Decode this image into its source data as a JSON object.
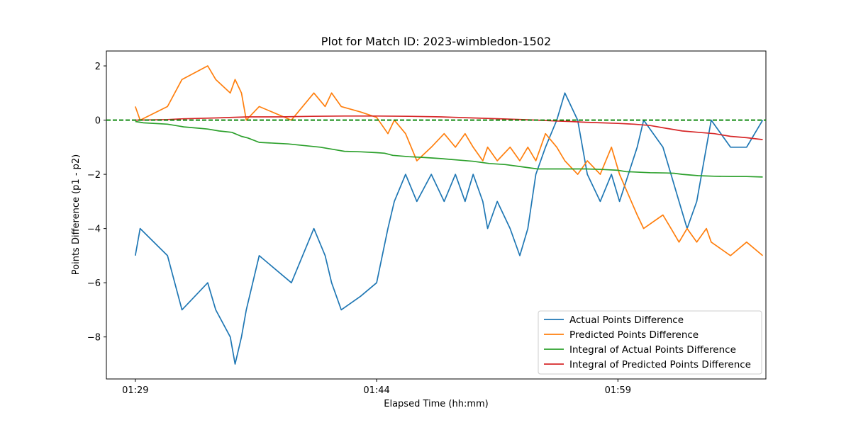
{
  "chart_data": {
    "type": "line",
    "title": "Plot for Match ID: 2023-wimbledon-1502",
    "xlabel": "Elapsed Time (hh:mm)",
    "ylabel": "Points Difference (p1 - p2)",
    "x_unit": "minutes",
    "xlim": [
      87.2,
      128.2
    ],
    "ylim": [
      -9.55,
      2.55
    ],
    "x_ticks": [
      {
        "value": 89,
        "label": "01:29"
      },
      {
        "value": 104,
        "label": "01:44"
      },
      {
        "value": 119,
        "label": "01:59"
      }
    ],
    "y_ticks": [
      {
        "value": 2,
        "label": "2"
      },
      {
        "value": 0,
        "label": "0"
      },
      {
        "value": -2,
        "label": "−2"
      },
      {
        "value": -4,
        "label": "−4"
      },
      {
        "value": -6,
        "label": "−6"
      },
      {
        "value": -8,
        "label": "−8"
      }
    ],
    "reference_line": {
      "y": 0,
      "color": "#008000",
      "style": "dashed"
    },
    "grid": false,
    "legend_position": "lower-right",
    "series": [
      {
        "name": "Actual Points Difference",
        "color": "#1f77b4",
        "x": [
          89.0,
          89.3,
          91.0,
          91.9,
          93.5,
          94.0,
          94.9,
          95.2,
          95.6,
          95.9,
          96.7,
          98.7,
          100.1,
          100.8,
          101.2,
          101.8,
          103.0,
          104.0,
          104.7,
          105.1,
          105.8,
          106.5,
          107.4,
          108.2,
          108.9,
          109.5,
          110.0,
          110.6,
          110.9,
          111.5,
          112.3,
          112.9,
          113.4,
          113.9,
          114.5,
          115.2,
          115.7,
          116.5,
          117.1,
          117.9,
          118.6,
          119.1,
          120.2,
          120.6,
          121.8,
          122.3,
          122.8,
          123.3,
          123.9,
          124.5,
          124.8,
          126.0,
          127.0,
          128.0
        ],
        "y": [
          -5,
          -4,
          -5,
          -7,
          -6,
          -7,
          -8,
          -9,
          -8,
          -7,
          -5,
          -6,
          -4,
          -5,
          -6,
          -7,
          -6.5,
          -6,
          -4,
          -3,
          -2,
          -3,
          -2,
          -3,
          -2,
          -3,
          -2,
          -3,
          -4,
          -3,
          -4,
          -5,
          -4,
          -2,
          -1,
          0,
          1,
          0,
          -2,
          -3,
          -2,
          -3,
          -1,
          0,
          -1,
          -2,
          -3,
          -4,
          -3,
          -1,
          0,
          -1,
          -1,
          0
        ]
      },
      {
        "name": "Predicted Points Difference",
        "color": "#ff7f0e",
        "x": [
          89.0,
          89.3,
          91.0,
          91.9,
          93.5,
          94.0,
          94.9,
          95.2,
          95.6,
          95.9,
          96.7,
          98.7,
          100.1,
          100.8,
          101.2,
          101.8,
          103.0,
          104.0,
          104.7,
          105.1,
          105.8,
          106.5,
          107.4,
          108.2,
          108.9,
          109.5,
          110.0,
          110.6,
          110.9,
          111.5,
          112.3,
          112.9,
          113.4,
          113.9,
          114.5,
          115.2,
          115.7,
          116.5,
          117.1,
          117.9,
          118.6,
          119.1,
          120.2,
          120.6,
          121.8,
          122.3,
          122.8,
          123.3,
          123.9,
          124.5,
          124.8,
          126.0,
          127.0,
          128.0
        ],
        "y": [
          0.5,
          0,
          0.5,
          1.5,
          2,
          1.5,
          1,
          1.5,
          1,
          0,
          0.5,
          0,
          1,
          0.5,
          1,
          0.5,
          0.3,
          0.1,
          -0.5,
          0,
          -0.5,
          -1.5,
          -1,
          -0.5,
          -1,
          -0.5,
          -1,
          -1.5,
          -1,
          -1.5,
          -1,
          -1.5,
          -1,
          -1.5,
          -0.5,
          -1,
          -1.5,
          -2,
          -1.5,
          -2,
          -1,
          -2,
          -3.5,
          -4,
          -3.5,
          -4,
          -4.5,
          -4,
          -4.5,
          -4,
          -4.5,
          -5,
          -4.5,
          -5
        ]
      },
      {
        "name": "Integral of Actual Points Difference",
        "color": "#2ca02c",
        "x": [
          89.0,
          89.5,
          91.0,
          92.0,
          93.0,
          93.5,
          94.2,
          95.0,
          95.6,
          96.0,
          96.7,
          98.5,
          100.5,
          101.5,
          102.0,
          103.0,
          104.0,
          104.5,
          105.0,
          106.0,
          107.0,
          108.0,
          109.0,
          110.0,
          111.0,
          112.0,
          113.0,
          114.0,
          115.0,
          116.0,
          117.0,
          118.0,
          119.0,
          119.5,
          121.0,
          122.0,
          122.5,
          123.0,
          124.0,
          125.0,
          126.0,
          127.0,
          128.0
        ],
        "y": [
          -0.05,
          -0.1,
          -0.15,
          -0.25,
          -0.3,
          -0.33,
          -0.4,
          -0.45,
          -0.6,
          -0.66,
          -0.82,
          -0.88,
          -1.0,
          -1.1,
          -1.15,
          -1.17,
          -1.2,
          -1.22,
          -1.3,
          -1.35,
          -1.38,
          -1.42,
          -1.47,
          -1.52,
          -1.6,
          -1.64,
          -1.72,
          -1.8,
          -1.8,
          -1.8,
          -1.8,
          -1.82,
          -1.85,
          -1.9,
          -1.94,
          -1.95,
          -1.96,
          -2.0,
          -2.05,
          -2.07,
          -2.08,
          -2.08,
          -2.1
        ]
      },
      {
        "name": "Integral of Predicted Points Difference",
        "color": "#d62728",
        "x": [
          89.0,
          91.0,
          92.0,
          94.0,
          96.0,
          98.0,
          100.0,
          102.0,
          104.0,
          106.0,
          108.0,
          110.0,
          112.0,
          114.0,
          115.0,
          116.0,
          117.0,
          118.0,
          119.0,
          120.0,
          121.0,
          122.0,
          123.0,
          124.0,
          125.0,
          126.0,
          127.0,
          128.0
        ],
        "y": [
          0.0,
          0.02,
          0.05,
          0.08,
          0.12,
          0.12,
          0.14,
          0.15,
          0.15,
          0.14,
          0.12,
          0.08,
          0.04,
          0.0,
          -0.03,
          -0.05,
          -0.08,
          -0.1,
          -0.12,
          -0.15,
          -0.2,
          -0.3,
          -0.4,
          -0.45,
          -0.5,
          -0.6,
          -0.65,
          -0.72
        ]
      }
    ]
  }
}
